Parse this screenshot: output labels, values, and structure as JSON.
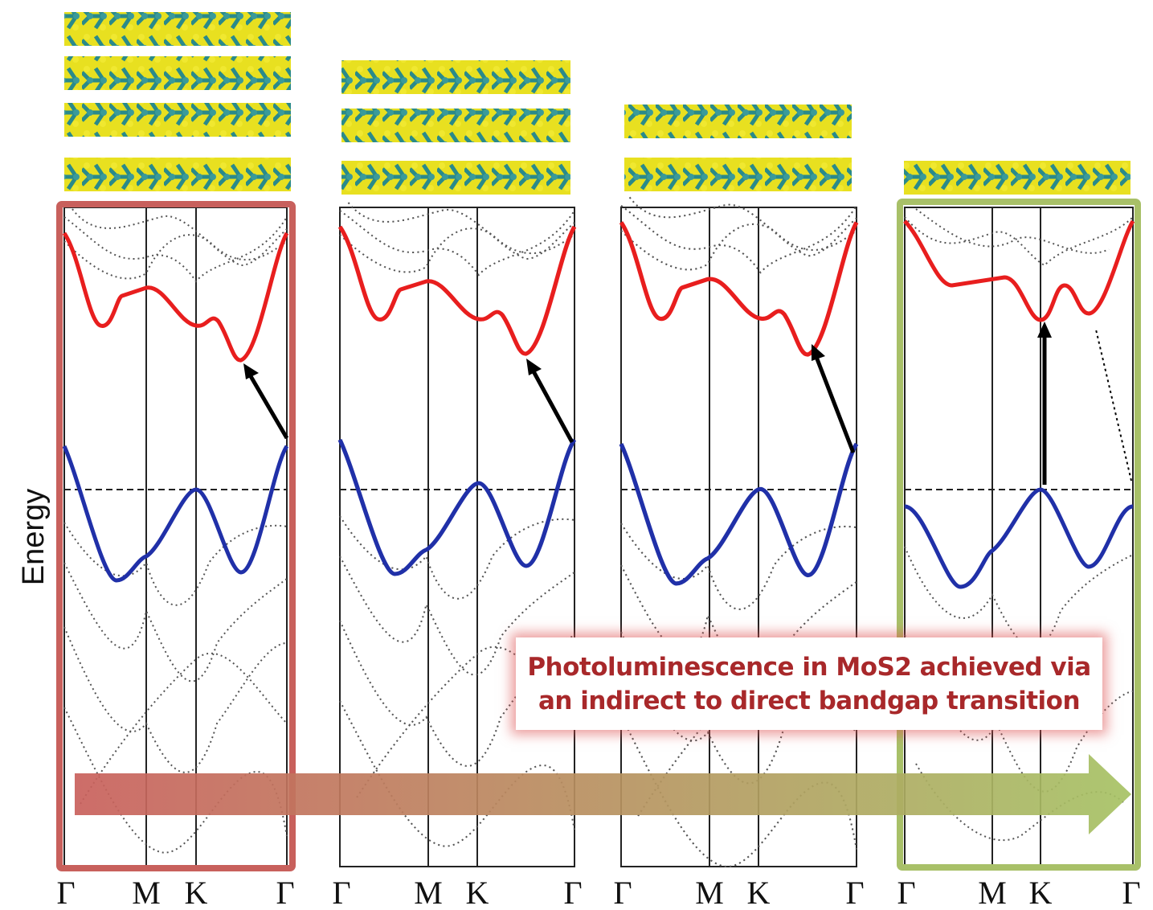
{
  "y_axis_label": "Energy",
  "panels": [
    {
      "k_labels": [
        "Γ",
        "M",
        "K",
        "Γ"
      ]
    },
    {
      "k_labels": [
        "Γ",
        "M",
        "K",
        "Γ"
      ]
    },
    {
      "k_labels": [
        "Γ",
        "M",
        "K",
        "Γ"
      ]
    },
    {
      "k_labels": [
        "Γ",
        "M",
        "K",
        "Γ"
      ]
    }
  ],
  "caption": {
    "lines": [
      "Photoluminescence in MoS2 achieved via",
      "an indirect to direct bandgap transition"
    ]
  }
}
